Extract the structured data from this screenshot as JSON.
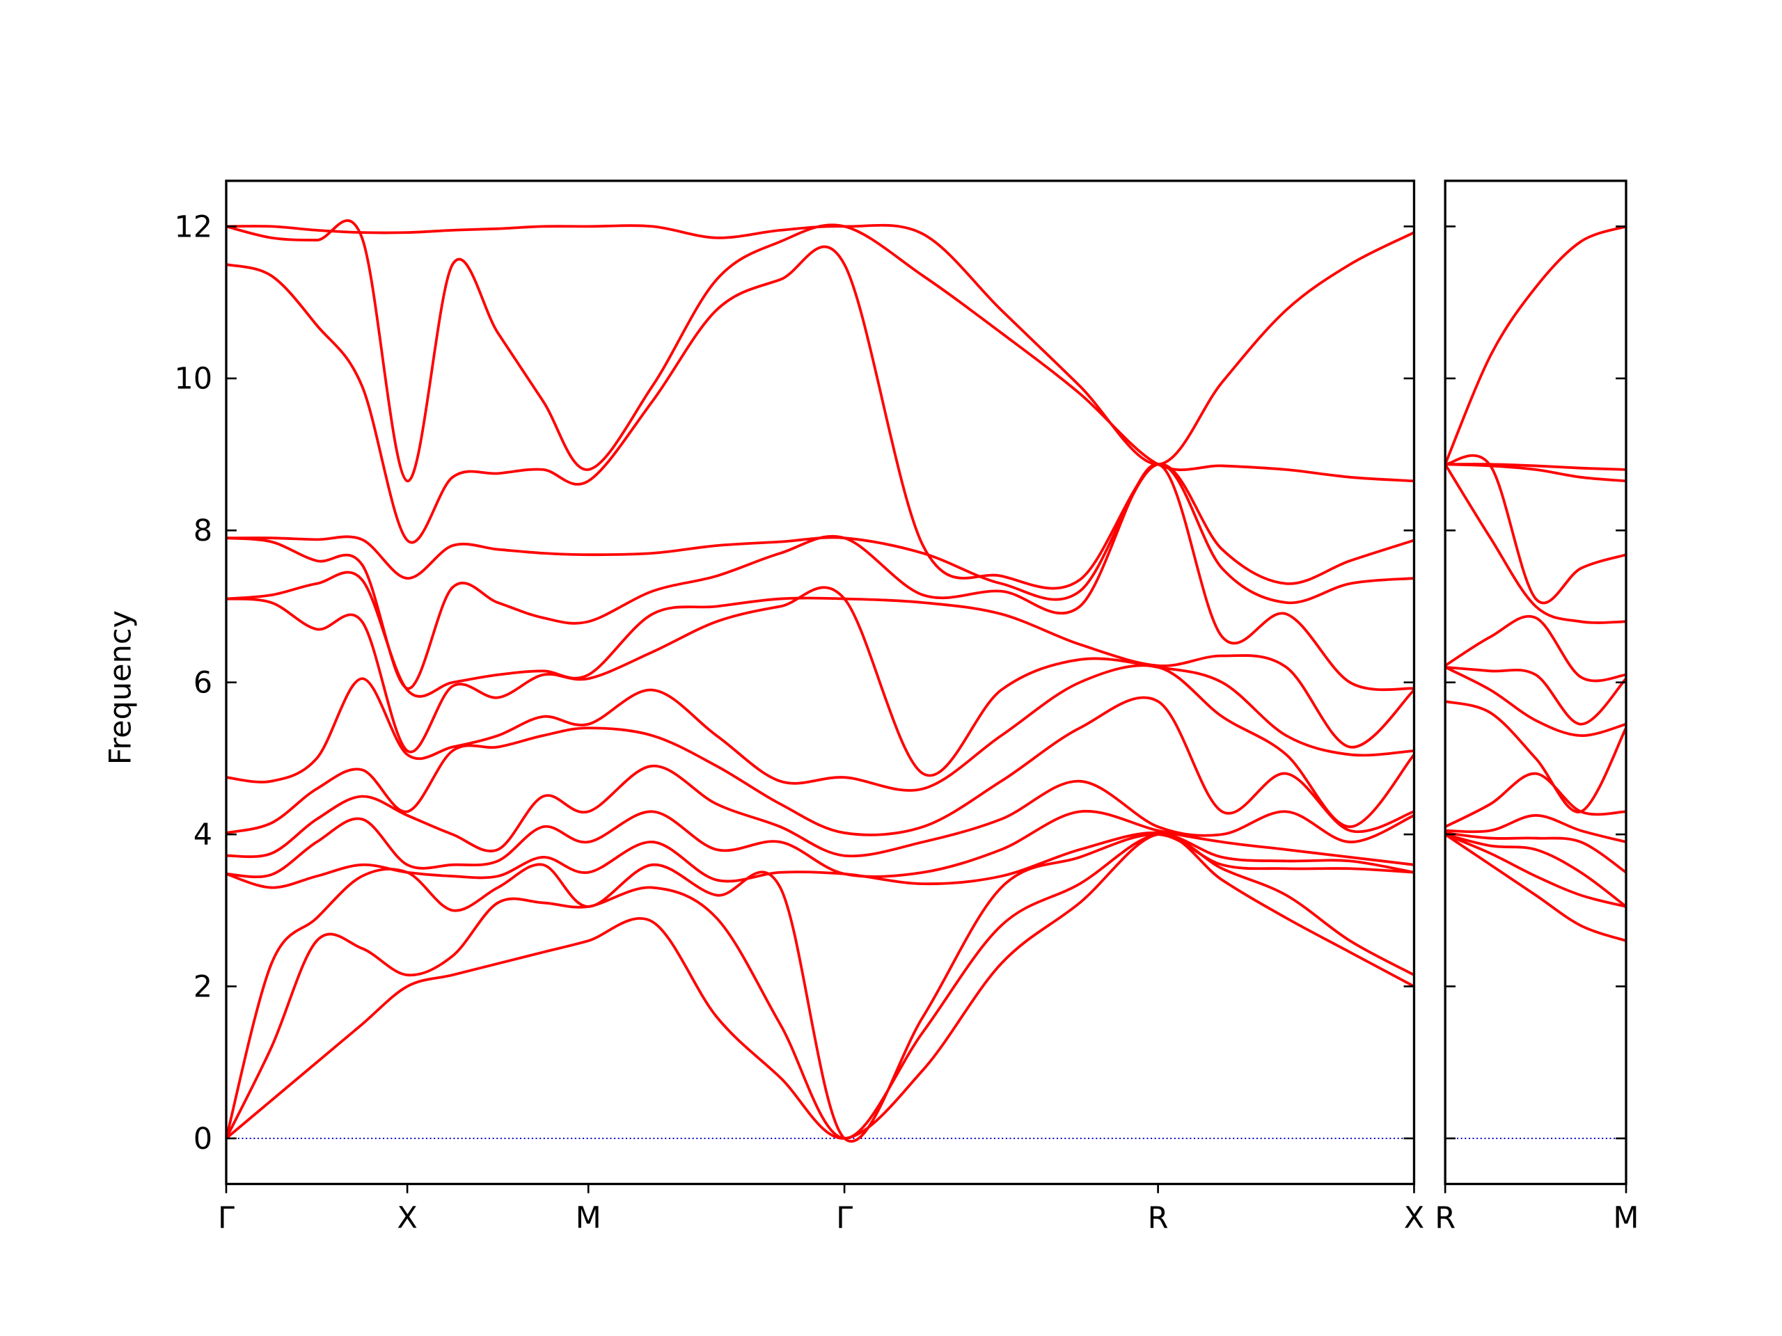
{
  "chart_data": [
    {
      "type": "line",
      "ylabel": "Frequency",
      "color": "#ff0000",
      "xlim": [
        0,
        3.28
      ],
      "ylim": [
        -0.6,
        12.6
      ],
      "xticks": [
        {
          "value": 0,
          "label": "Γ"
        },
        {
          "value": 0.5,
          "label": "X"
        },
        {
          "value": 1,
          "label": "M"
        },
        {
          "value": 1.707,
          "label": "Γ"
        },
        {
          "value": 2.573,
          "label": "R"
        },
        {
          "value": 3.28,
          "label": "X"
        }
      ],
      "yticks": [
        0,
        2,
        4,
        6,
        8,
        10,
        12
      ],
      "reference_line": {
        "y": 0,
        "color": "#0000cc"
      },
      "x": [
        0,
        0.125,
        0.25,
        0.375,
        0.5,
        0.625,
        0.75,
        0.875,
        1,
        1.177,
        1.354,
        1.53,
        1.707,
        1.924,
        2.14,
        2.357,
        2.573,
        2.75,
        2.927,
        3.103,
        3.28
      ],
      "series": [
        {
          "values": [
            0,
            0.5,
            1.0,
            1.5,
            2.0,
            2.15,
            2.3,
            2.45,
            2.6,
            2.85,
            1.6,
            0.8,
            0,
            0.9,
            2.3,
            3.1,
            4.0,
            3.4,
            2.9,
            2.45,
            2.0
          ]
        },
        {
          "values": [
            0,
            1.2,
            2.6,
            2.5,
            2.15,
            2.4,
            3.1,
            3.1,
            3.05,
            3.3,
            2.9,
            1.5,
            0,
            1.4,
            2.8,
            3.35,
            4.0,
            3.55,
            3.2,
            2.6,
            2.15
          ]
        },
        {
          "values": [
            0,
            2.3,
            2.9,
            3.45,
            3.5,
            3.0,
            3.3,
            3.6,
            3.05,
            3.6,
            3.2,
            3.3,
            0,
            1.6,
            3.3,
            3.7,
            4.0,
            3.6,
            3.55,
            3.55,
            3.5
          ]
        },
        {
          "values": [
            3.48,
            3.3,
            3.45,
            3.6,
            3.5,
            3.45,
            3.45,
            3.7,
            3.5,
            3.9,
            3.4,
            3.5,
            3.48,
            3.35,
            3.45,
            3.8,
            4.02,
            3.7,
            3.65,
            3.65,
            3.5
          ]
        },
        {
          "values": [
            3.48,
            3.47,
            3.9,
            4.2,
            3.6,
            3.6,
            3.65,
            4.1,
            3.9,
            4.3,
            3.8,
            3.9,
            3.48,
            3.5,
            3.8,
            4.3,
            4.05,
            3.9,
            3.8,
            3.7,
            3.6
          ]
        },
        {
          "values": [
            3.72,
            3.75,
            4.2,
            4.5,
            4.25,
            4.0,
            3.8,
            4.5,
            4.3,
            4.9,
            4.4,
            4.1,
            3.72,
            3.9,
            4.2,
            4.7,
            4.1,
            4.0,
            4.3,
            3.9,
            4.25
          ]
        },
        {
          "values": [
            4.02,
            4.15,
            4.6,
            4.85,
            4.3,
            5.1,
            5.15,
            5.3,
            5.4,
            5.3,
            4.9,
            4.4,
            4.02,
            4.1,
            4.7,
            5.4,
            5.75,
            4.3,
            4.8,
            4.05,
            4.3
          ]
        },
        {
          "values": [
            4.75,
            4.7,
            5.0,
            6.05,
            5.05,
            5.15,
            5.3,
            5.55,
            5.45,
            5.9,
            5.3,
            4.7,
            4.75,
            4.6,
            5.3,
            6.0,
            6.2,
            5.55,
            5.05,
            4.1,
            5.05
          ]
        },
        {
          "values": [
            7.1,
            7.05,
            6.7,
            6.8,
            5.1,
            5.95,
            5.8,
            6.1,
            6.05,
            6.4,
            6.8,
            7.0,
            7.1,
            4.8,
            5.9,
            6.3,
            6.2,
            6.0,
            5.3,
            5.05,
            5.1
          ]
        },
        {
          "values": [
            7.1,
            7.15,
            7.3,
            7.35,
            5.9,
            6.0,
            6.1,
            6.15,
            6.1,
            6.9,
            7.0,
            7.1,
            7.1,
            7.05,
            6.9,
            6.5,
            6.22,
            6.35,
            6.2,
            5.15,
            5.9
          ]
        },
        {
          "values": [
            7.9,
            7.85,
            7.6,
            7.55,
            5.92,
            7.25,
            7.05,
            6.85,
            6.8,
            7.2,
            7.4,
            7.7,
            7.9,
            7.15,
            7.2,
            7.0,
            8.87,
            6.6,
            6.9,
            6.0,
            5.92
          ]
        },
        {
          "values": [
            7.9,
            7.9,
            7.88,
            7.88,
            7.37,
            7.8,
            7.75,
            7.7,
            7.68,
            7.7,
            7.8,
            7.85,
            7.9,
            7.7,
            7.3,
            7.2,
            8.87,
            7.5,
            7.05,
            7.3,
            7.37
          ]
        },
        {
          "values": [
            11.5,
            11.35,
            10.7,
            9.9,
            7.87,
            8.7,
            8.75,
            8.8,
            8.65,
            9.7,
            10.9,
            11.3,
            11.5,
            7.8,
            7.4,
            7.35,
            8.87,
            7.75,
            7.3,
            7.6,
            7.87
          ]
        },
        {
          "values": [
            12.0,
            11.85,
            11.82,
            11.85,
            8.65,
            11.5,
            10.6,
            9.7,
            8.8,
            9.9,
            11.3,
            11.8,
            12.0,
            11.35,
            10.6,
            9.8,
            8.87,
            8.85,
            8.8,
            8.7,
            8.65
          ]
        },
        {
          "values": [
            12.0,
            12.0,
            11.95,
            11.92,
            11.92,
            11.95,
            11.97,
            12.0,
            12.0,
            12.0,
            11.85,
            11.95,
            12.0,
            11.9,
            10.9,
            9.9,
            8.87,
            9.95,
            10.9,
            11.5,
            11.92
          ]
        }
      ]
    },
    {
      "type": "line",
      "color": "#ff0000",
      "xlim": [
        0,
        0.707
      ],
      "ylim": [
        -0.6,
        12.6
      ],
      "xticks": [
        {
          "value": 0,
          "label": "R"
        },
        {
          "value": 0.707,
          "label": "M"
        }
      ],
      "yticks": [
        0,
        2,
        4,
        6,
        8,
        10,
        12
      ],
      "reference_line": {
        "y": 0,
        "color": "#0000cc"
      },
      "x": [
        0,
        0.177,
        0.354,
        0.53,
        0.707
      ],
      "series": [
        {
          "values": [
            4.0,
            3.6,
            3.2,
            2.8,
            2.6
          ]
        },
        {
          "values": [
            4.0,
            3.75,
            3.45,
            3.2,
            3.05
          ]
        },
        {
          "values": [
            4.0,
            3.85,
            3.8,
            3.5,
            3.05
          ]
        },
        {
          "values": [
            4.02,
            3.95,
            3.95,
            3.9,
            3.5
          ]
        },
        {
          "values": [
            4.05,
            4.05,
            4.25,
            4.05,
            3.9
          ]
        },
        {
          "values": [
            4.1,
            4.4,
            4.8,
            4.3,
            4.3
          ]
        },
        {
          "values": [
            5.75,
            5.6,
            5.0,
            4.3,
            5.4
          ]
        },
        {
          "values": [
            6.2,
            5.9,
            5.5,
            5.3,
            5.45
          ]
        },
        {
          "values": [
            6.2,
            6.15,
            6.1,
            5.45,
            6.05
          ]
        },
        {
          "values": [
            6.22,
            6.6,
            6.85,
            6.07,
            6.1
          ]
        },
        {
          "values": [
            8.87,
            7.9,
            7.0,
            6.8,
            6.8
          ]
        },
        {
          "values": [
            8.87,
            8.85,
            7.1,
            7.5,
            7.68
          ]
        },
        {
          "values": [
            8.87,
            8.85,
            8.8,
            8.7,
            8.65
          ]
        },
        {
          "values": [
            8.87,
            8.87,
            8.85,
            8.82,
            8.8
          ]
        },
        {
          "values": [
            8.87,
            10.3,
            11.2,
            11.8,
            12.0
          ]
        }
      ]
    }
  ]
}
